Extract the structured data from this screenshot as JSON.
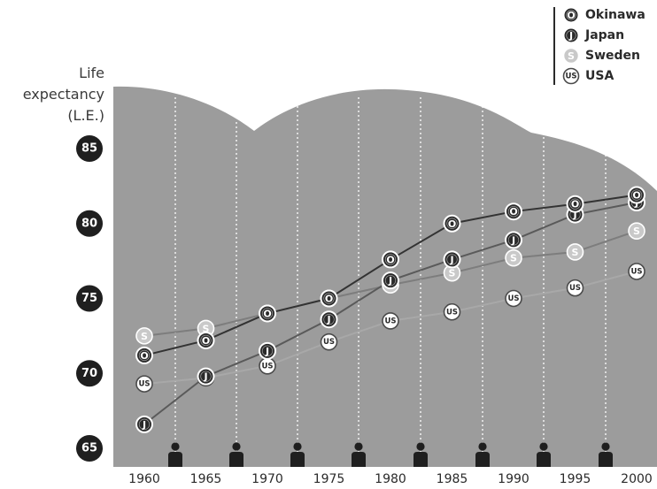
{
  "chart_data": {
    "type": "line",
    "title": "",
    "ylabel_lines": [
      "Life",
      "expectancy",
      "(L.E.)"
    ],
    "xlabel": "",
    "x": [
      1960,
      1965,
      1970,
      1975,
      1980,
      1985,
      1990,
      1995,
      2000
    ],
    "xtick_labels": [
      "1960",
      "1965",
      "1970",
      "1975",
      "1980",
      "1985",
      "1990",
      "1995",
      "2000"
    ],
    "ylim": [
      65,
      85
    ],
    "yticks": [
      65,
      70,
      75,
      80,
      85
    ],
    "ytick_labels": [
      "65",
      "70",
      "75",
      "80",
      "85"
    ],
    "grid": "vertical dotted lines at each x tick",
    "legend_position": "top-right",
    "series": [
      {
        "name": "Okinawa",
        "marker": "O",
        "marker_style": "dark",
        "line_color": "#333333",
        "values": [
          71.2,
          72.2,
          74.0,
          75.0,
          77.6,
          80.0,
          80.8,
          81.3,
          81.9
        ]
      },
      {
        "name": "Japan",
        "marker": "J",
        "marker_style": "dark",
        "line_color": "#5a5a5a",
        "values": [
          66.6,
          69.8,
          71.5,
          73.6,
          76.2,
          77.6,
          78.9,
          80.6,
          81.4
        ]
      },
      {
        "name": "Sweden",
        "marker": "S",
        "marker_style": "light",
        "line_color": "#7d7d7d",
        "values": [
          72.5,
          73.0,
          74.0,
          75.0,
          75.9,
          76.7,
          77.7,
          78.1,
          79.5
        ]
      },
      {
        "name": "USA",
        "marker": "US",
        "marker_style": "white",
        "line_color": "#a8a8a8",
        "values": [
          69.3,
          69.7,
          70.5,
          72.1,
          73.5,
          74.1,
          75.0,
          75.7,
          76.8
        ]
      }
    ],
    "colors": {
      "background_shape": "#9c9c9c",
      "y_badge": "#1f1f1f",
      "grid": "#ffffff",
      "person_icon": "#1f1f1f"
    },
    "decorations": {
      "person_icon_count": 8
    }
  }
}
